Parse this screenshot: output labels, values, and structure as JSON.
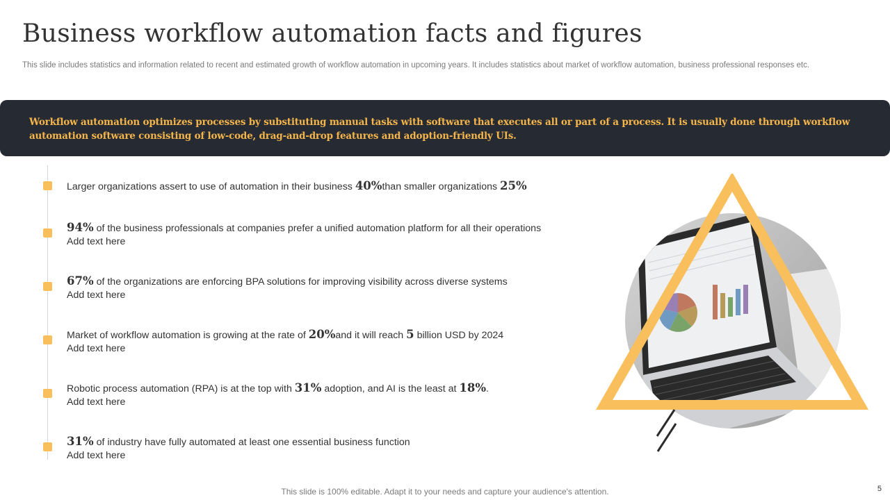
{
  "header": {
    "title": "Business workflow automation facts and figures",
    "subtitle": "This slide includes statistics and information related to recent and estimated growth of workflow automation in upcoming years. It includes statistics about market of workflow automation, business professional responses etc."
  },
  "banner": {
    "text": "Workflow automation optimizes processes by substituting manual tasks with software that executes all or part of a process. It is usually done through workflow automation software consisting of low-code, drag-and-drop features and adoption-friendly UIs."
  },
  "facts": [
    {
      "pre": "Larger organizations assert to use of automation in their business ",
      "n1": "40%",
      "mid": "than smaller organizations ",
      "n2": "25%",
      "post": "",
      "sub": ""
    },
    {
      "n1": "94%",
      "mid": " of the business professionals at companies prefer a unified automation platform for all their operations",
      "sub": "Add text here"
    },
    {
      "n1": "67%",
      "mid": " of the organizations are enforcing BPA solutions for improving visibility across diverse systems",
      "sub": "Add text here"
    },
    {
      "pre": "Market of workflow automation is growing at the rate of ",
      "n1": "20%",
      "mid": "and it will reach ",
      "n2": "5",
      "post": " billion USD by 2024",
      "sub": "Add text here"
    },
    {
      "pre": "Robotic process automation (RPA) is at the top with ",
      "n1": "31%",
      "mid": " adoption, and AI is the least at ",
      "n2": "18%",
      "post": ".",
      "sub": "Add text here"
    },
    {
      "n1": "31%",
      "mid": " of industry have fully automated at least one essential business function",
      "sub": "Add text here"
    }
  ],
  "footer": {
    "note": "This slide is 100% editable. Adapt it to your needs and capture your audience's attention.",
    "page": "5"
  },
  "colors": {
    "accent": "#f8bf5c",
    "banner_bg": "#252a33",
    "banner_text": "#f5b54a"
  }
}
